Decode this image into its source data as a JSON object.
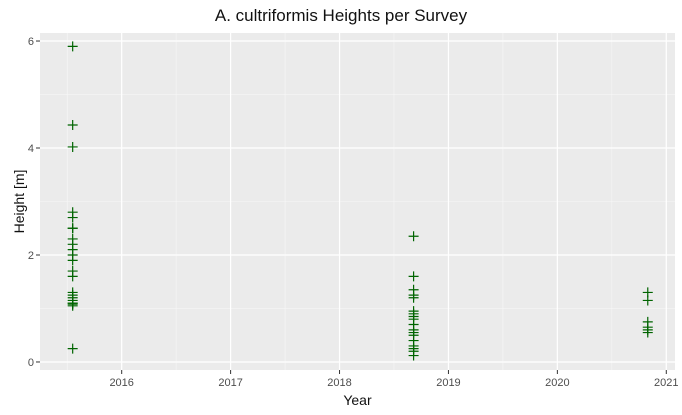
{
  "chart_data": {
    "type": "scatter",
    "title": "A. cultriformis Heights per Survey",
    "xlabel": "Year",
    "ylabel": "Height [m]",
    "x_ticks": [
      "2016",
      "2017",
      "2018",
      "2019",
      "2020",
      "2021"
    ],
    "y_ticks": [
      "0",
      "2",
      "4",
      "6"
    ],
    "xlim": [
      2015.25,
      2021.08
    ],
    "ylim": [
      -0.15,
      6.15
    ],
    "grid": true,
    "legend": "none",
    "marker": "plus",
    "marker_color": "#006400",
    "panel_color": "#ebebeb",
    "series": [
      {
        "x": [
          2015.55,
          2015.55,
          2015.55,
          2015.55,
          2015.55,
          2015.55,
          2015.55,
          2015.55,
          2015.55,
          2015.55,
          2015.55,
          2015.55,
          2015.55,
          2015.55,
          2015.55,
          2015.55,
          2015.55,
          2015.55,
          2015.55,
          2015.55,
          2015.55,
          2015.55,
          2015.55
        ],
        "y": [
          5.9,
          4.43,
          4.02,
          2.8,
          2.7,
          2.5,
          2.5,
          2.3,
          2.2,
          2.1,
          2.0,
          1.9,
          1.7,
          1.6,
          1.3,
          1.25,
          1.2,
          1.15,
          1.1,
          1.1,
          1.08,
          1.05,
          0.25
        ]
      },
      {
        "x": [
          2018.68,
          2018.68,
          2018.68,
          2018.68,
          2018.68,
          2018.68,
          2018.68,
          2018.68,
          2018.68,
          2018.68,
          2018.68,
          2018.68,
          2018.68,
          2018.68,
          2018.68,
          2018.68,
          2018.68,
          2018.68
        ],
        "y": [
          2.35,
          1.6,
          1.35,
          1.25,
          1.2,
          0.95,
          0.9,
          0.85,
          0.8,
          0.7,
          0.6,
          0.55,
          0.5,
          0.4,
          0.3,
          0.25,
          0.2,
          0.12
        ]
      },
      {
        "x": [
          2020.83,
          2020.83,
          2020.83,
          2020.83,
          2020.83,
          2020.83
        ],
        "y": [
          1.3,
          1.15,
          0.75,
          0.65,
          0.6,
          0.55
        ]
      }
    ]
  }
}
